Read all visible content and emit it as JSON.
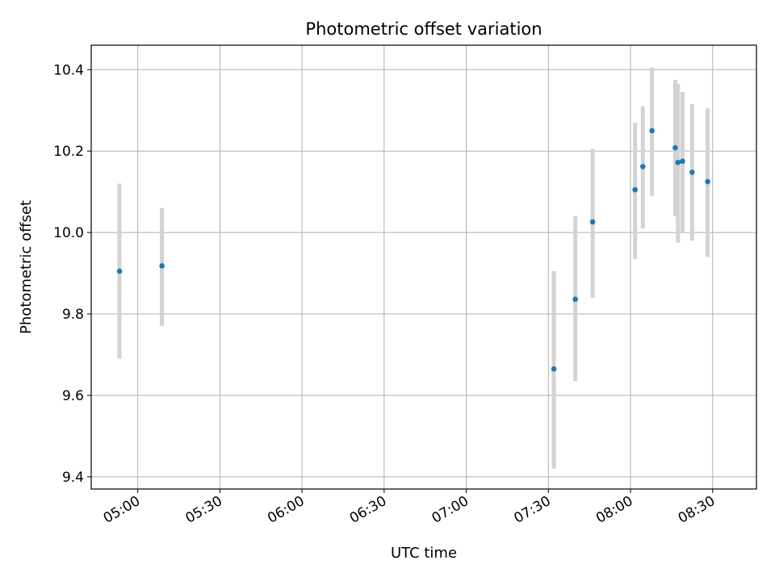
{
  "chart_data": {
    "type": "scatter",
    "title": "Photometric offset variation",
    "xlabel": "UTC time",
    "ylabel": "Photometric offset",
    "grid": true,
    "xlim": [
      "04:43",
      "08:46"
    ],
    "ylim": [
      9.37,
      10.46
    ],
    "x_ticks": [
      "05:00",
      "05:30",
      "06:00",
      "06:30",
      "07:00",
      "07:30",
      "08:00",
      "08:30"
    ],
    "y_ticks": [
      9.4,
      9.6,
      9.8,
      10.0,
      10.2,
      10.4
    ],
    "y_tick_labels": [
      "9.4",
      "9.6",
      "9.8",
      "10.0",
      "10.2",
      "10.4"
    ],
    "marker_color": "#1f77b4",
    "errorbar_color": "#d3d3d3",
    "points": [
      {
        "t": "04:53:20",
        "y": 9.905,
        "lo": 9.69,
        "hi": 10.12
      },
      {
        "t": "05:08:50",
        "y": 9.918,
        "lo": 9.77,
        "hi": 10.06
      },
      {
        "t": "07:32:00",
        "y": 9.665,
        "lo": 9.42,
        "hi": 9.905
      },
      {
        "t": "07:39:50",
        "y": 9.836,
        "lo": 9.635,
        "hi": 10.04
      },
      {
        "t": "07:46:10",
        "y": 10.026,
        "lo": 9.84,
        "hi": 10.205
      },
      {
        "t": "08:01:40",
        "y": 10.105,
        "lo": 9.935,
        "hi": 10.27
      },
      {
        "t": "08:04:30",
        "y": 10.162,
        "lo": 10.01,
        "hi": 10.31
      },
      {
        "t": "08:07:50",
        "y": 10.25,
        "lo": 10.09,
        "hi": 10.405
      },
      {
        "t": "08:16:20",
        "y": 10.208,
        "lo": 10.04,
        "hi": 10.375
      },
      {
        "t": "08:17:20",
        "y": 10.172,
        "lo": 9.975,
        "hi": 10.365
      },
      {
        "t": "08:19:00",
        "y": 10.175,
        "lo": 10.0,
        "hi": 10.345
      },
      {
        "t": "08:22:30",
        "y": 10.148,
        "lo": 9.98,
        "hi": 10.315
      },
      {
        "t": "08:28:10",
        "y": 10.125,
        "lo": 9.94,
        "hi": 10.305
      }
    ]
  }
}
